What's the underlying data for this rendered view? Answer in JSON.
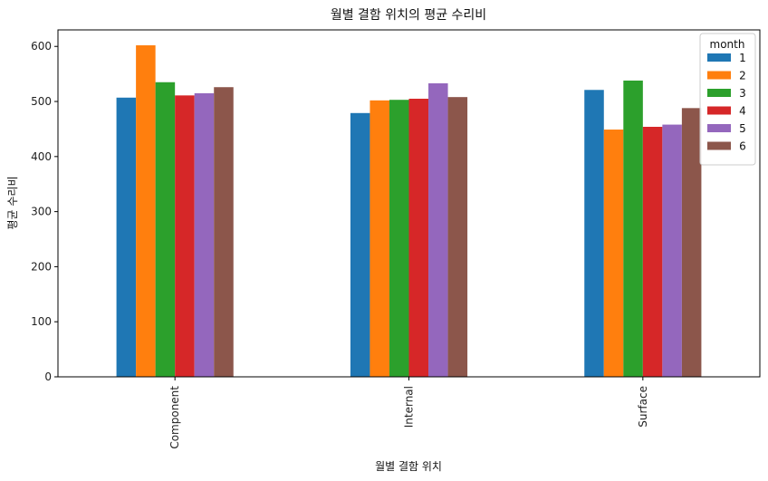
{
  "chart_data": {
    "type": "bar",
    "title": "월별 결함 위치의 평균 수리비",
    "xlabel": "월별 결함 위치",
    "ylabel": "평균 수리비",
    "categories": [
      "Component",
      "Internal",
      "Surface"
    ],
    "ylim": [
      0,
      630
    ],
    "yticks": [
      0,
      100,
      200,
      300,
      400,
      500,
      600
    ],
    "grid": false,
    "legend": {
      "title": "month",
      "placement": "top-right"
    },
    "series": [
      {
        "name": "1",
        "color": "#1f77b4",
        "values": [
          507,
          479,
          521
        ]
      },
      {
        "name": "2",
        "color": "#ff7f0e",
        "values": [
          602,
          502,
          449
        ]
      },
      {
        "name": "3",
        "color": "#2ca02c",
        "values": [
          535,
          503,
          538
        ]
      },
      {
        "name": "4",
        "color": "#d62728",
        "values": [
          511,
          505,
          454
        ]
      },
      {
        "name": "5",
        "color": "#9467bd",
        "values": [
          515,
          533,
          458
        ]
      },
      {
        "name": "6",
        "color": "#8c564b",
        "values": [
          526,
          508,
          488
        ]
      }
    ]
  }
}
